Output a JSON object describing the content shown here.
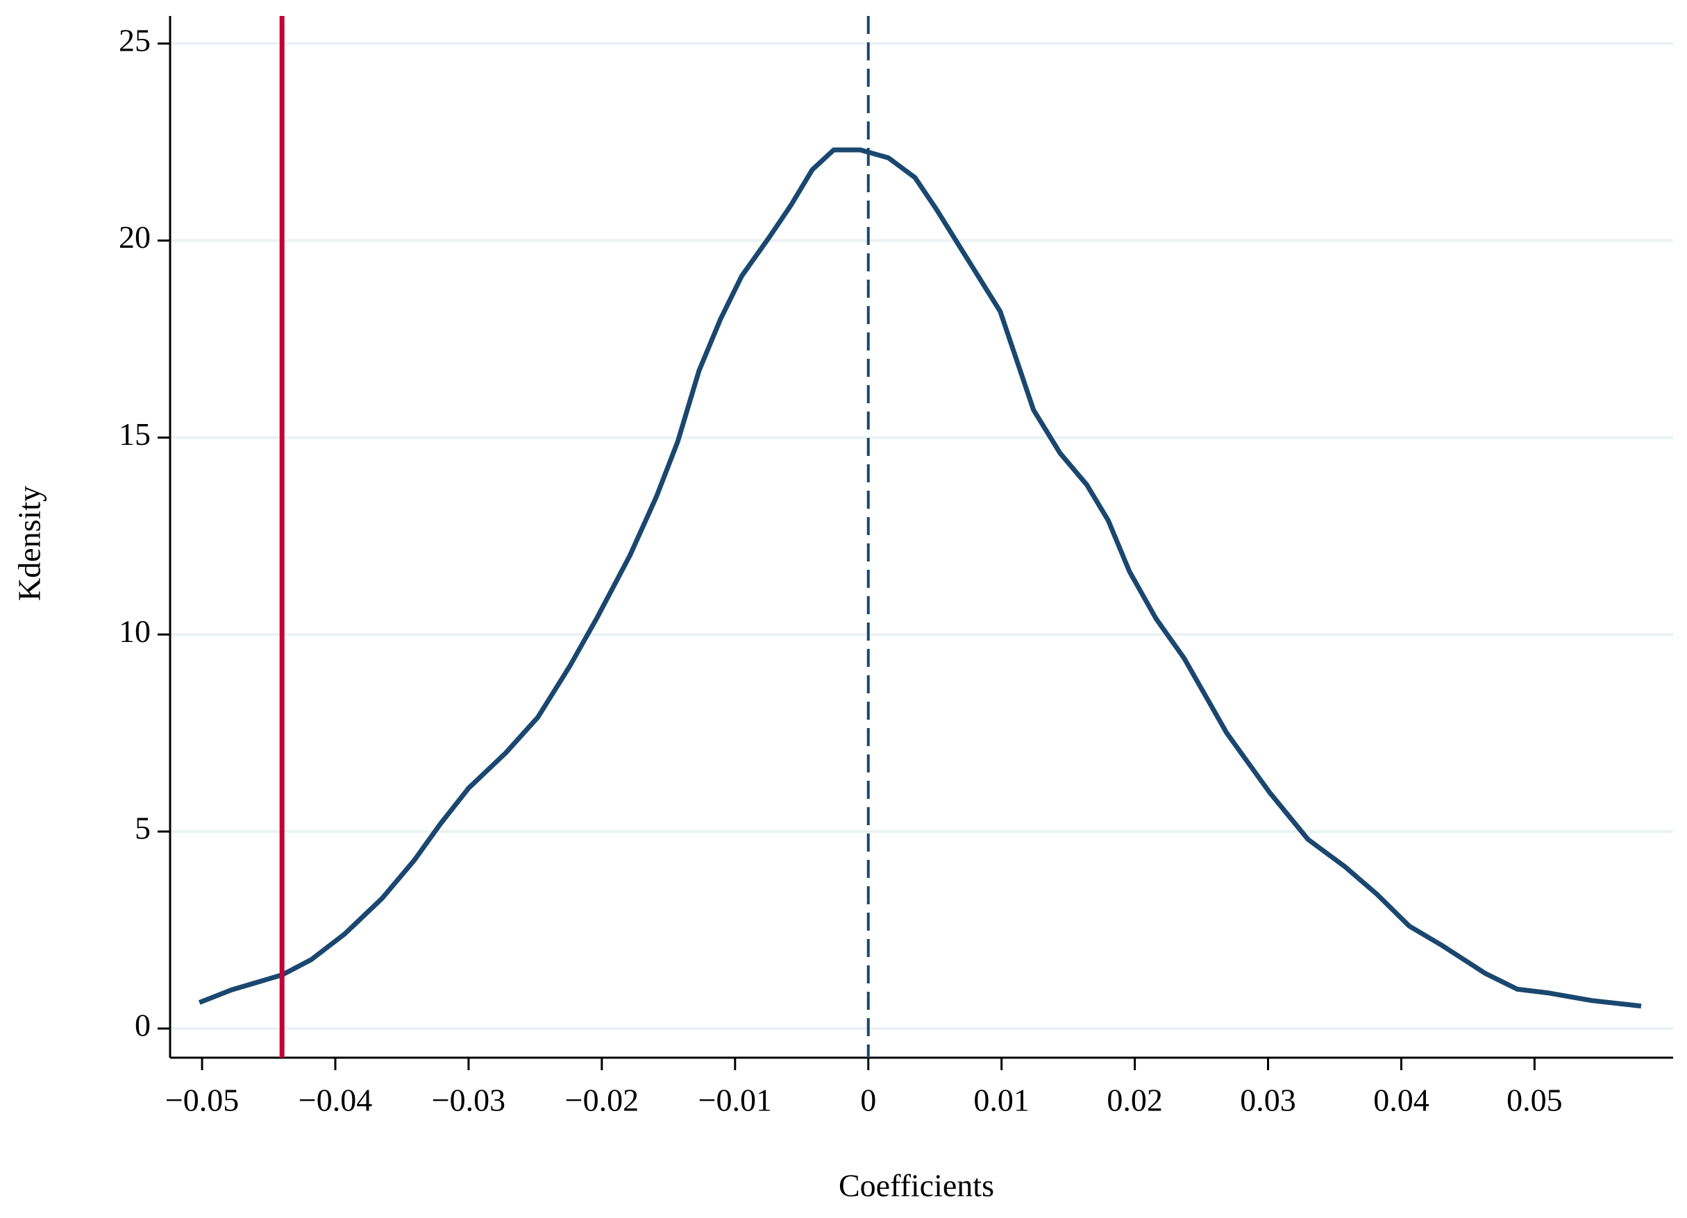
{
  "chart_data": {
    "type": "line",
    "x_label": "Coefficients",
    "y_label": "Kdensity",
    "series": [
      {
        "color": "#1a476f",
        "x": [
          -0.0502,
          -0.0478,
          -0.044,
          -0.0418,
          -0.0393,
          -0.0365,
          -0.0341,
          -0.0321,
          -0.03,
          -0.0272,
          -0.0248,
          -0.0224,
          -0.0204,
          -0.0179,
          -0.0159,
          -0.0143,
          -0.0127,
          -0.0111,
          -0.0095,
          -0.0074,
          -0.0058,
          -0.0042,
          -0.0026,
          -0.0006,
          0.0015,
          0.0035,
          0.0051,
          0.0075,
          0.0099,
          0.0124,
          0.0144,
          0.0164,
          0.018,
          0.0196,
          0.0216,
          0.0237,
          0.0269,
          0.0301,
          0.033,
          0.0358,
          0.0382,
          0.0406,
          0.0431,
          0.0463,
          0.0487,
          0.0511,
          0.0543,
          0.058
        ],
        "values": [
          0.66,
          0.98,
          1.36,
          1.75,
          2.4,
          3.3,
          4.26,
          5.2,
          6.1,
          7.0,
          7.9,
          9.2,
          10.4,
          12.0,
          13.5,
          14.9,
          16.7,
          18.0,
          19.1,
          20.1,
          20.9,
          21.8,
          22.3,
          22.3,
          22.1,
          21.6,
          20.8,
          19.5,
          18.2,
          15.7,
          14.6,
          13.8,
          12.9,
          11.6,
          10.4,
          9.4,
          7.5,
          6.0,
          4.8,
          4.1,
          3.4,
          2.6,
          2.1,
          1.4,
          1.0,
          0.9,
          0.71,
          0.57
        ]
      }
    ],
    "reference_lines": [
      {
        "x": -0.044,
        "color": "#c10534",
        "style": "solid"
      },
      {
        "x": 0,
        "color": "#1a476f",
        "style": "dashed"
      }
    ],
    "xlim": [
      -0.0524,
      0.0604
    ],
    "ylim": [
      -0.74,
      25.7
    ],
    "xticks": [
      {
        "value": -0.05,
        "label": "−0.05"
      },
      {
        "value": -0.04,
        "label": "−0.04"
      },
      {
        "value": -0.03,
        "label": "−0.03"
      },
      {
        "value": -0.02,
        "label": "−0.02"
      },
      {
        "value": -0.01,
        "label": "−0.01"
      },
      0,
      0.01,
      0.02,
      0.03,
      0.04,
      0.05
    ],
    "yticks": [
      0,
      5,
      10,
      15,
      20,
      25
    ],
    "grid": true
  }
}
